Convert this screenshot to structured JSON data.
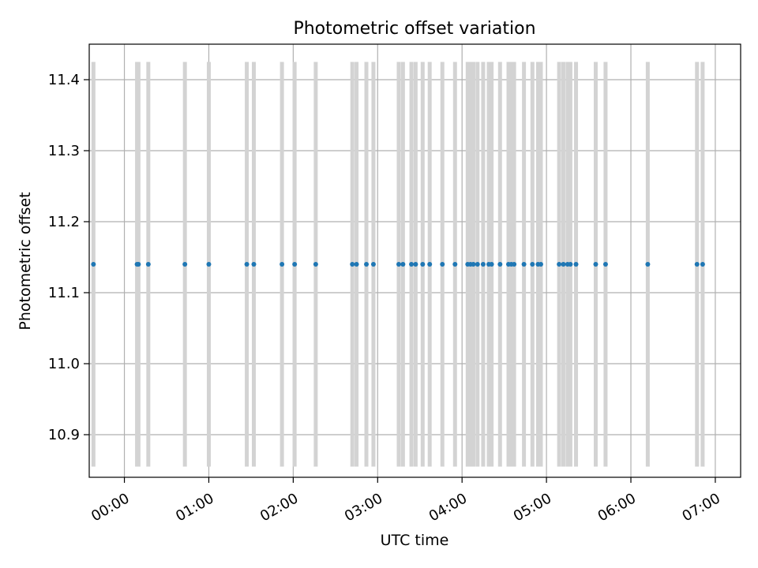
{
  "chart_data": {
    "type": "scatter",
    "title": "Photometric offset variation",
    "xlabel": "UTC time",
    "ylabel": "Photometric offset",
    "x_unit": "HH:MM",
    "xlim": [
      "23:35",
      "07:18"
    ],
    "ylim": [
      10.84,
      11.45
    ],
    "x_ticks": [
      "00:00",
      "01:00",
      "02:00",
      "03:00",
      "04:00",
      "05:00",
      "06:00",
      "07:00"
    ],
    "y_ticks": [
      10.9,
      11.0,
      11.1,
      11.2,
      11.3,
      11.4
    ],
    "grid": true,
    "legend": "none",
    "colors": {
      "points": "#1f77b4",
      "error_bars": "#d3d3d3",
      "grid": "#b0b0b0"
    },
    "series": [
      {
        "x": [
          "23:38",
          "00:09",
          "00:10",
          "00:17",
          "00:43",
          "01:00",
          "01:27",
          "01:32",
          "01:52",
          "02:01",
          "02:16",
          "02:42",
          "02:45",
          "02:52",
          "02:57",
          "03:15",
          "03:18",
          "03:24",
          "03:27",
          "03:32",
          "03:37",
          "03:46",
          "03:55",
          "04:04",
          "04:06",
          "04:08",
          "04:11",
          "04:15",
          "04:19",
          "04:21",
          "04:27",
          "04:33",
          "04:35",
          "04:37",
          "04:44",
          "04:50",
          "04:54",
          "04:56",
          "05:09",
          "05:12",
          "05:15",
          "05:17",
          "05:21",
          "05:35",
          "05:42",
          "06:12",
          "06:47",
          "06:51"
        ],
        "y": [
          11.14,
          11.14,
          11.14,
          11.14,
          11.14,
          11.14,
          11.14,
          11.14,
          11.14,
          11.14,
          11.14,
          11.14,
          11.14,
          11.14,
          11.14,
          11.14,
          11.14,
          11.14,
          11.14,
          11.14,
          11.14,
          11.14,
          11.14,
          11.14,
          11.14,
          11.14,
          11.14,
          11.14,
          11.14,
          11.14,
          11.14,
          11.14,
          11.14,
          11.14,
          11.14,
          11.14,
          11.14,
          11.14,
          11.14,
          11.14,
          11.14,
          11.14,
          11.14,
          11.14,
          11.14,
          11.14,
          11.14,
          11.14
        ],
        "y_err": 0.285
      }
    ]
  }
}
